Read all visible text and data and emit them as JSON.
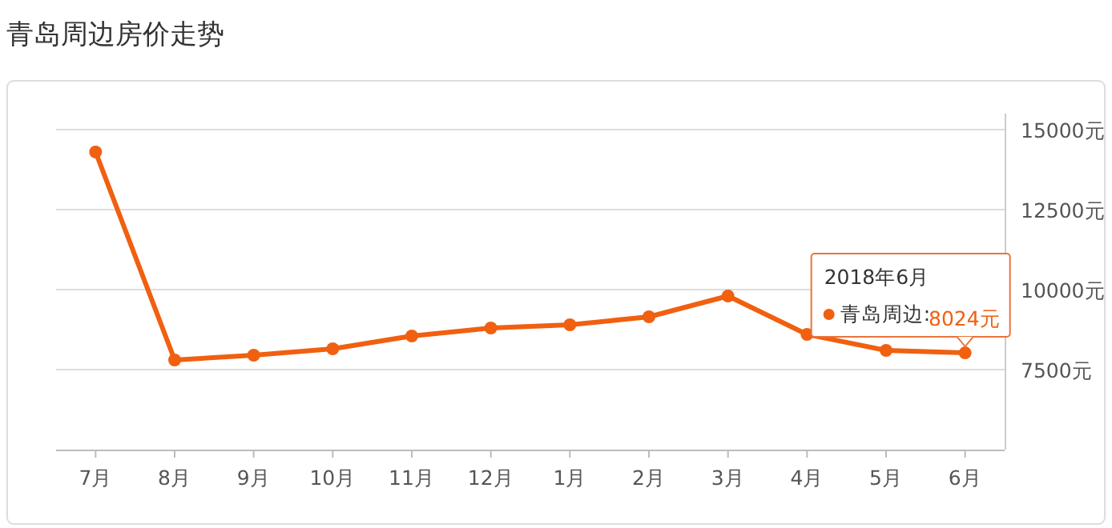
{
  "chart_data": {
    "type": "line",
    "title": "青岛周边房价走势",
    "categories": [
      "7月",
      "8月",
      "9月",
      "10月",
      "11月",
      "12月",
      "1月",
      "2月",
      "3月",
      "4月",
      "5月",
      "6月"
    ],
    "series": [
      {
        "name": "青岛周边:",
        "color": "#f06010",
        "values": [
          14300,
          7800,
          7950,
          8150,
          8550,
          8800,
          8900,
          9150,
          9800,
          8600,
          8100,
          8024
        ],
        "value_labels": [
          null,
          null,
          null,
          null,
          null,
          null,
          null,
          null,
          null,
          null,
          null,
          "8024元"
        ]
      }
    ],
    "ylim": [
      5000,
      15000
    ],
    "yticks": [
      {
        "value": 7500,
        "label": "7500元"
      },
      {
        "value": 10000,
        "label": "10000元"
      },
      {
        "value": 12500,
        "label": "12500元"
      },
      {
        "value": 15000,
        "label": "15000元"
      }
    ],
    "annotations": [
      "2018年6月"
    ],
    "grid": "y",
    "marker": "circle",
    "line_style": "solid",
    "legend": "right"
  }
}
